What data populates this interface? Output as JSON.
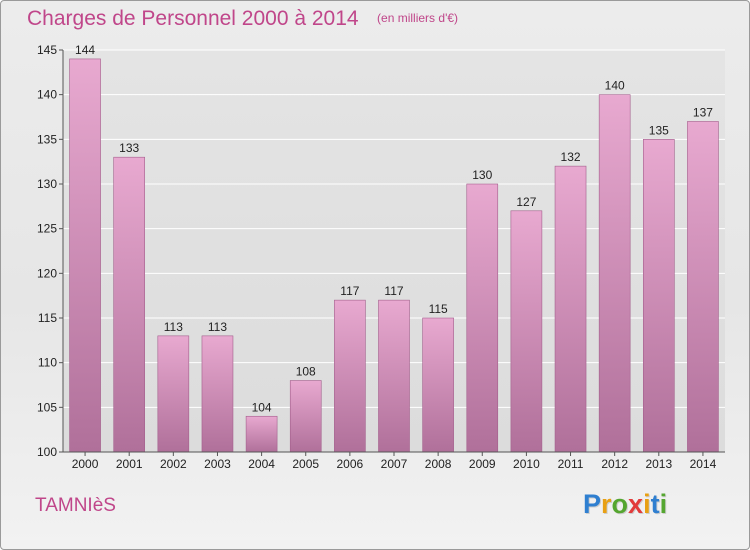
{
  "header": {
    "title": "Charges de Personnel 2000 à 2014",
    "subtitle": "(en milliers d'€)"
  },
  "footer": {
    "commune": "TAMNIèS",
    "logo": {
      "letters": [
        "P",
        "r",
        "o",
        "x",
        "i",
        "t",
        "i"
      ],
      "colors": [
        "#2f7fd0",
        "#e8a013",
        "#55a630",
        "#e23b3b",
        "#e8a013",
        "#2f7fd0",
        "#55a630"
      ]
    }
  },
  "chart_data": {
    "type": "bar",
    "categories": [
      "2000",
      "2001",
      "2002",
      "2003",
      "2004",
      "2005",
      "2006",
      "2007",
      "2008",
      "2009",
      "2010",
      "2011",
      "2012",
      "2013",
      "2014"
    ],
    "values": [
      144,
      133,
      113,
      113,
      104,
      108,
      117,
      117,
      115,
      130,
      127,
      132,
      140,
      135,
      137
    ],
    "ylim": [
      100,
      145
    ],
    "yticks": [
      100,
      105,
      110,
      115,
      120,
      125,
      130,
      135,
      140,
      145
    ],
    "grid": true,
    "bar_color_top": "#e8a9d0",
    "bar_color_bottom": "#b0709a",
    "text_color": "#222222"
  }
}
